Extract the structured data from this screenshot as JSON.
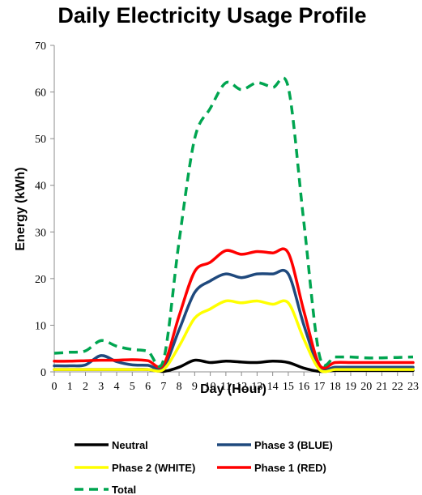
{
  "chart_data": {
    "type": "line",
    "title": "Daily Electricity Usage Profile",
    "xlabel": "Day (Hour)",
    "ylabel": "Energy (kWh)",
    "xlim": [
      0,
      23
    ],
    "ylim": [
      0,
      70
    ],
    "x": [
      0,
      1,
      2,
      3,
      4,
      5,
      6,
      7,
      8,
      9,
      10,
      11,
      12,
      13,
      14,
      15,
      16,
      17,
      18,
      19,
      20,
      21,
      22,
      23
    ],
    "x_ticks": [
      "0",
      "1",
      "2",
      "3",
      "4",
      "5",
      "6",
      "7",
      "8",
      "9",
      "10",
      "11",
      "12",
      "13",
      "14",
      "15",
      "16",
      "17",
      "18",
      "19",
      "20",
      "21",
      "22",
      "23"
    ],
    "y_ticks": [
      "0",
      "10",
      "20",
      "30",
      "40",
      "50",
      "60",
      "70"
    ],
    "grid": false,
    "legend_position": "bottom",
    "series": [
      {
        "name": "Neutral",
        "color": "#000000",
        "style": "solid",
        "values": [
          0.5,
          0.5,
          0.5,
          0.5,
          0.5,
          0.5,
          0.5,
          0.1,
          1.0,
          2.5,
          2.0,
          2.3,
          2.1,
          2.0,
          2.3,
          2.0,
          0.8,
          0.1,
          0.3,
          0.3,
          0.3,
          0.3,
          0.3,
          0.3
        ]
      },
      {
        "name": "Phase 3 (BLUE)",
        "color": "#1F497D",
        "style": "solid",
        "values": [
          1.3,
          1.3,
          1.5,
          3.5,
          2.2,
          1.5,
          1.4,
          1.0,
          9.0,
          17.0,
          19.5,
          21.0,
          20.2,
          21.0,
          21.0,
          21.0,
          10.0,
          1.0,
          1.0,
          1.0,
          1.0,
          1.0,
          1.0,
          1.0
        ]
      },
      {
        "name": "Phase 2 (WHITE)",
        "color": "#FFFF00",
        "style": "solid",
        "values": [
          0.5,
          0.5,
          0.5,
          0.5,
          0.5,
          0.5,
          0.5,
          0.5,
          5.5,
          11.5,
          13.5,
          15.2,
          14.8,
          15.2,
          14.5,
          14.8,
          7.0,
          0.5,
          0.5,
          0.5,
          0.5,
          0.5,
          0.5,
          0.5
        ]
      },
      {
        "name": "Phase 1 (RED)",
        "color": "#FF0000",
        "style": "solid",
        "values": [
          2.3,
          2.3,
          2.4,
          2.5,
          2.5,
          2.6,
          2.4,
          1.5,
          12.0,
          21.5,
          23.5,
          26.0,
          25.2,
          25.8,
          25.5,
          25.5,
          13.0,
          1.5,
          2.0,
          2.0,
          2.0,
          2.0,
          2.0,
          2.0
        ]
      },
      {
        "name": "Total",
        "color": "#00A550",
        "style": "dashed",
        "values": [
          4.0,
          4.2,
          4.5,
          6.7,
          5.5,
          4.8,
          4.4,
          2.5,
          28.0,
          50.0,
          56.5,
          62.0,
          60.5,
          62.0,
          61.0,
          61.0,
          32.0,
          3.5,
          3.2,
          3.2,
          3.0,
          3.0,
          3.1,
          3.2
        ]
      }
    ]
  }
}
